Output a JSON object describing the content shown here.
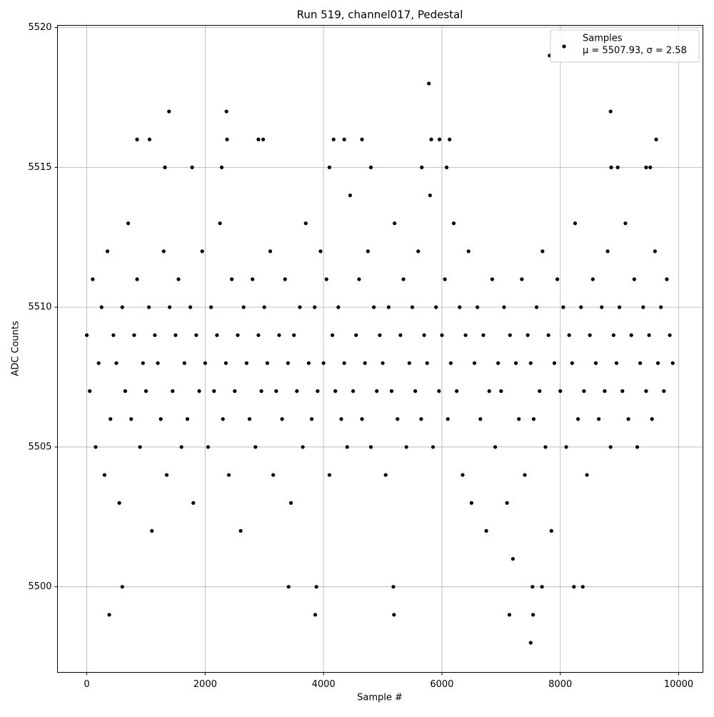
{
  "chart_data": {
    "type": "scatter",
    "title": "Run 519, channel017, Pedestal",
    "x_label": "Sample #",
    "y_label": "ADC Counts",
    "xlim": [
      -495,
      10410
    ],
    "ylim": [
      5496.94,
      5520.08
    ],
    "xticks": [
      0,
      2000,
      4000,
      6000,
      8000,
      10000
    ],
    "yticks": [
      5500,
      5505,
      5510,
      5515,
      5520
    ],
    "grid": true,
    "legend": "upper right",
    "legend_note": "μ = 5507.93, σ = 2.58",
    "series": [
      {
        "name": "Samples",
        "color": "#000000",
        "x": [
          0,
          50,
          100,
          150,
          200,
          250,
          300,
          350,
          400,
          450,
          500,
          550,
          600,
          650,
          700,
          750,
          800,
          850,
          900,
          950,
          1000,
          1050,
          1100,
          1150,
          1200,
          1250,
          1300,
          1350,
          1400,
          1450,
          1500,
          1550,
          1600,
          1650,
          1700,
          1750,
          1800,
          1850,
          1900,
          1950,
          2000,
          2050,
          2100,
          2150,
          2200,
          2250,
          2300,
          2350,
          2400,
          2450,
          2500,
          2550,
          2600,
          2650,
          2700,
          2750,
          2800,
          2850,
          2900,
          2950,
          3000,
          3050,
          3100,
          3150,
          3200,
          3250,
          3300,
          3350,
          3400,
          3450,
          3500,
          3550,
          3600,
          3650,
          3700,
          3750,
          3800,
          3850,
          3900,
          3950,
          4000,
          4050,
          4100,
          4150,
          4200,
          4250,
          4300,
          4350,
          4400,
          4450,
          4500,
          4550,
          4600,
          4650,
          4700,
          4750,
          4800,
          4850,
          4900,
          4950,
          5000,
          5050,
          5100,
          5150,
          5200,
          5250,
          5300,
          5350,
          5400,
          5450,
          5500,
          5550,
          5600,
          5650,
          5700,
          5750,
          5800,
          5850,
          5900,
          5950,
          6000,
          6050,
          6100,
          6150,
          6200,
          6250,
          6300,
          6350,
          6400,
          6450,
          6500,
          6550,
          6600,
          6650,
          6700,
          6750,
          6800,
          6850,
          6900,
          6950,
          7000,
          7050,
          7100,
          7150,
          7200,
          7250,
          7300,
          7350,
          7400,
          7450,
          7500,
          7550,
          7600,
          7650,
          7700,
          7750,
          7800,
          7850,
          7900,
          7950,
          8000,
          8050,
          8100,
          8150,
          8200,
          8250,
          8300,
          8350,
          8400,
          8450,
          8500,
          8550,
          8600,
          8650,
          8700,
          8750,
          8800,
          8850,
          8900,
          8950,
          9000,
          9050,
          9100,
          9150,
          9200,
          9250,
          9300,
          9350,
          9400,
          9450,
          9500,
          9550,
          9600,
          9650,
          9700,
          9750,
          9800,
          9850,
          9900,
          380,
          600,
          1390,
          2360,
          3410,
          3860,
          3880,
          5180,
          5190,
          5780,
          7140,
          7500,
          7530,
          7540,
          7690,
          7820,
          8230,
          8380,
          8850,
          850,
          1060,
          2370,
          2900,
          2980,
          4170,
          4350,
          4650,
          5820,
          5960,
          6130,
          9620,
          1780,
          2280,
          4100,
          4800,
          5660,
          6080,
          8860,
          8970,
          9450,
          9520,
          1320
        ],
        "values": [
          5509,
          5507,
          5511,
          5505,
          5508,
          5510,
          5504,
          5512,
          5506,
          5509,
          5508,
          5503,
          5510,
          5507,
          5513,
          5506,
          5509,
          5511,
          5505,
          5508,
          5507,
          5510,
          5502,
          5509,
          5508,
          5506,
          5512,
          5504,
          5510,
          5507,
          5509,
          5511,
          5505,
          5508,
          5506,
          5510,
          5503,
          5509,
          5507,
          5512,
          5508,
          5505,
          5510,
          5507,
          5509,
          5513,
          5506,
          5508,
          5504,
          5511,
          5507,
          5509,
          5502,
          5510,
          5508,
          5506,
          5511,
          5505,
          5509,
          5507,
          5510,
          5508,
          5512,
          5504,
          5507,
          5509,
          5506,
          5511,
          5508,
          5503,
          5509,
          5507,
          5510,
          5505,
          5513,
          5508,
          5506,
          5510,
          5507,
          5512,
          5508,
          5511,
          5504,
          5509,
          5507,
          5510,
          5506,
          5508,
          5505,
          5514,
          5507,
          5509,
          5511,
          5506,
          5508,
          5512,
          5505,
          5510,
          5507,
          5509,
          5508,
          5504,
          5510,
          5507,
          5513,
          5506,
          5509,
          5511,
          5505,
          5508,
          5510,
          5507,
          5512,
          5506,
          5509,
          5508,
          5514,
          5505,
          5510,
          5507,
          5509,
          5511,
          5506,
          5508,
          5513,
          5507,
          5510,
          5504,
          5509,
          5512,
          5503,
          5508,
          5510,
          5506,
          5509,
          5502,
          5507,
          5511,
          5505,
          5508,
          5507,
          5510,
          5503,
          5509,
          5501,
          5508,
          5506,
          5511,
          5504,
          5509,
          5508,
          5506,
          5510,
          5507,
          5512,
          5505,
          5509,
          5502,
          5508,
          5511,
          5507,
          5510,
          5505,
          5509,
          5508,
          5513,
          5506,
          5510,
          5507,
          5504,
          5509,
          5511,
          5508,
          5506,
          5510,
          5507,
          5512,
          5505,
          5509,
          5508,
          5510,
          5507,
          5513,
          5506,
          5509,
          5511,
          5505,
          5508,
          5510,
          5507,
          5509,
          5506,
          5512,
          5508,
          5510,
          5507,
          5511,
          5509,
          5508,
          5499,
          5500,
          5517,
          5517,
          5500,
          5499,
          5500,
          5500,
          5499,
          5518,
          5499,
          5498,
          5500,
          5499,
          5500,
          5519,
          5500,
          5500,
          5517,
          5516,
          5516,
          5516,
          5516,
          5516,
          5516,
          5516,
          5516,
          5516,
          5516,
          5516,
          5516,
          5515,
          5515,
          5515,
          5515,
          5515,
          5515,
          5515,
          5515,
          5515,
          5515,
          5515
        ]
      }
    ]
  }
}
